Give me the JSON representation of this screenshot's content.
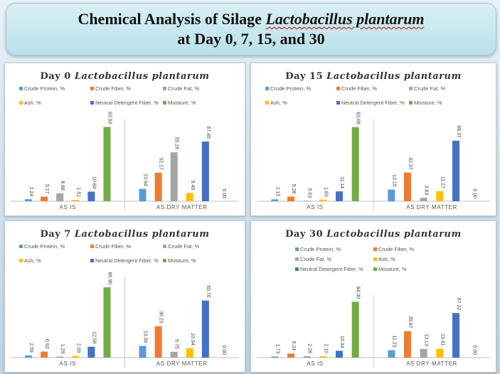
{
  "header": {
    "title_prefix": "Chemical Analysis of Silage ",
    "title_italic": "Lactobacillus plantarum",
    "subtitle": "at Day 0, 7, 15, and 30"
  },
  "colors": {
    "Crude Protein, %": "#5b9bd5",
    "Crude Fiber, %": "#ed7d31",
    "Crude Fat, %": "#a5a5a5",
    "Ash, %": "#ffc000",
    "Neutral Detergent Fiber, %": "#4472c4",
    "Moisture, %": "#70ad47"
  },
  "chart_data": [
    {
      "type": "bar",
      "title_day": "Day 0 ",
      "title_species": "Lactobacillus plantarum",
      "categories": [
        "AS IS",
        "AS DRY MATTER"
      ],
      "series": [
        {
          "name": "Crude Protein, %",
          "values": [
            "2.24",
            "13.94"
          ]
        },
        {
          "name": "Crude Fiber, %",
          "values": [
            "5.17",
            "32.17"
          ]
        },
        {
          "name": "Crude Fat, %",
          "values": [
            "8.88",
            "55.26"
          ]
        },
        {
          "name": "Ash, %",
          "values": [
            "1.51",
            "9.40"
          ]
        },
        {
          "name": "Neutral Detergent Fiber, %",
          "values": [
            "10.84",
            "67.45"
          ]
        },
        {
          "name": "Moisture, %",
          "values": [
            "83.93",
            "0.00"
          ]
        }
      ],
      "ylim": [
        0,
        90
      ],
      "legend": "top",
      "grid": false
    },
    {
      "type": "bar",
      "title_day": "Day 15 ",
      "title_species": "Lactobacillus plantarum",
      "categories": [
        "AS IS",
        "AS DRY MATTER"
      ],
      "series": [
        {
          "name": "Crude Protein, %",
          "values": [
            "2.15",
            "13.15"
          ]
        },
        {
          "name": "Crude Fiber, %",
          "values": [
            "5.28",
            "32.37"
          ]
        },
        {
          "name": "Crude Fat, %",
          "values": [
            "0.63",
            "3.83"
          ]
        },
        {
          "name": "Ash, %",
          "values": [
            "1.83",
            "11.27"
          ]
        },
        {
          "name": "Neutral Detergent Fiber, %",
          "values": [
            "11.14",
            "68.37"
          ]
        },
        {
          "name": "Moisture, %",
          "values": [
            "83.68",
            "0.00"
          ]
        }
      ],
      "ylim": [
        0,
        90
      ],
      "legend": "top",
      "grid": false
    },
    {
      "type": "bar",
      "title_day": "Day 7 ",
      "title_species": "Lactobacillus plantarum",
      "categories": [
        "AS IS",
        "AS DRY MATTER"
      ],
      "series": [
        {
          "name": "Crude Protein, %",
          "values": [
            "2.59",
            "13.56"
          ]
        },
        {
          "name": "Crude Fiber, %",
          "values": [
            "6.92",
            "36.23"
          ]
        },
        {
          "name": "Crude Fat, %",
          "values": [
            "1.29",
            "6.75"
          ]
        },
        {
          "name": "Ash, %",
          "values": [
            "2.09",
            "10.94"
          ]
        },
        {
          "name": "Neutral Detergent Fiber, %",
          "values": [
            "12.56",
            "65.76"
          ]
        },
        {
          "name": "Moisture, %",
          "values": [
            "80.90",
            "0.00"
          ]
        }
      ],
      "ylim": [
        0,
        90
      ],
      "legend": "top",
      "grid": false
    },
    {
      "type": "bar",
      "title_day": "Day 30 ",
      "title_species": "Lactobacillus plantarum",
      "categories": [
        "AS IS",
        "AS DRY MATTER"
      ],
      "series": [
        {
          "name": "Crude Protein, %",
          "values": [
            "1.73",
            "11.23"
          ]
        },
        {
          "name": "Crude Fiber, %",
          "values": [
            "6.24",
            "39.87"
          ]
        },
        {
          "name": "Crude Fat, %",
          "values": [
            "2.28",
            "13.13"
          ]
        },
        {
          "name": "Ash, %",
          "values": [
            "2.10",
            "13.41"
          ]
        },
        {
          "name": "Neutral Detergent Fiber, %",
          "values": [
            "10.34",
            "67.22"
          ]
        },
        {
          "name": "Moisture, %",
          "values": [
            "84.30",
            "0.00"
          ]
        }
      ],
      "ylim": [
        0,
        90
      ],
      "legend": "top",
      "grid": false
    }
  ]
}
